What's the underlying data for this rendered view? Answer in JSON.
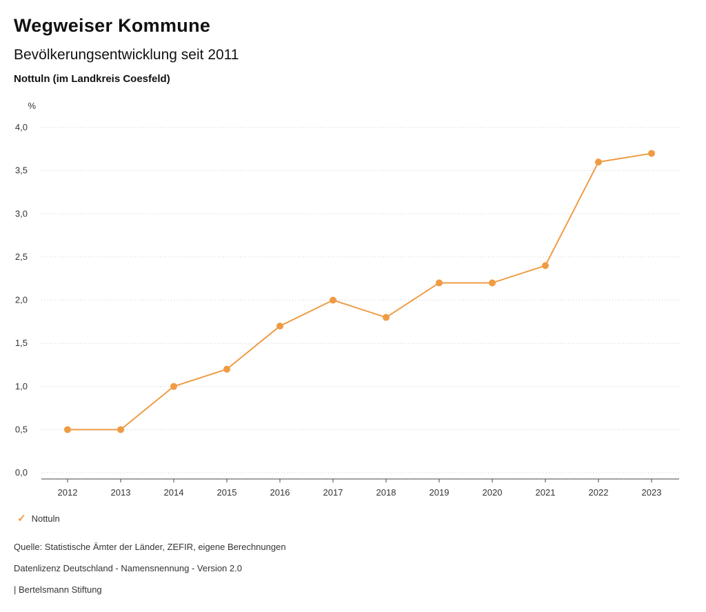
{
  "header": {
    "title": "Wegweiser Kommune",
    "subtitle": "Bevölkerungsentwicklung seit 2011",
    "region": "Nottuln (im Landkreis Coesfeld)"
  },
  "legend": {
    "check_icon": "✓",
    "label": "Nottuln"
  },
  "footer": {
    "source": "Quelle: Statistische Ämter der Länder, ZEFIR, eigene Berechnungen",
    "license": "Datenlizenz Deutschland - Namensnennung - Version 2.0",
    "publisher": "| Bertelsmann Stiftung"
  },
  "colors": {
    "line": "#EF9B44",
    "marker": "#EF9B44",
    "grid": "#c8c8c8",
    "axis": "#444444",
    "tick_text": "#333333"
  },
  "chart_data": {
    "type": "line",
    "title": "Bevölkerungsentwicklung seit 2011",
    "xlabel": "",
    "ylabel": "%",
    "categories": [
      "2012",
      "2013",
      "2014",
      "2015",
      "2016",
      "2017",
      "2018",
      "2019",
      "2020",
      "2021",
      "2022",
      "2023"
    ],
    "series": [
      {
        "name": "Nottuln",
        "values": [
          0.5,
          0.5,
          1.0,
          1.2,
          1.7,
          2.0,
          1.8,
          2.2,
          2.2,
          2.4,
          3.6,
          3.7
        ]
      }
    ],
    "ylim": [
      0,
      4
    ],
    "ytick_step": 0.5,
    "ytick_labels": [
      "0,0",
      "0,5",
      "1,0",
      "1,5",
      "2,0",
      "2,5",
      "3,0",
      "3,5",
      "4,0"
    ],
    "grid": true,
    "grid_style": "dotted",
    "legend_position": "bottom-left"
  }
}
